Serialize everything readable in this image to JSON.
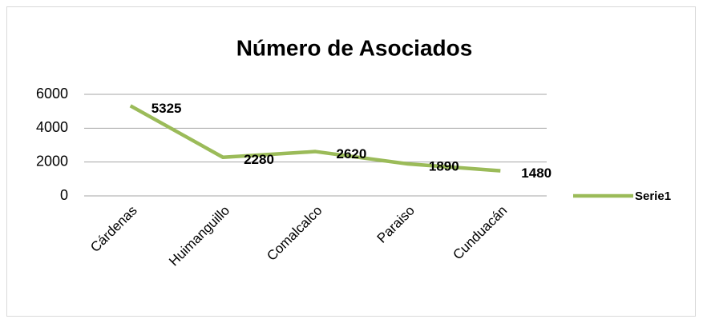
{
  "chart_data": {
    "type": "line",
    "title": "Número de Asociados",
    "categories": [
      "Cárdenas",
      "Huimanguillo",
      "Comalcalco",
      "Paraiso",
      "Cunduacán"
    ],
    "series": [
      {
        "name": "Serie1",
        "color": "#9bbb59",
        "values": [
          5325,
          2280,
          2620,
          1890,
          1480
        ]
      }
    ],
    "ylim": [
      0,
      6000
    ],
    "yticks": [
      0,
      2000,
      4000,
      6000
    ],
    "grid": true,
    "legend": "right"
  }
}
